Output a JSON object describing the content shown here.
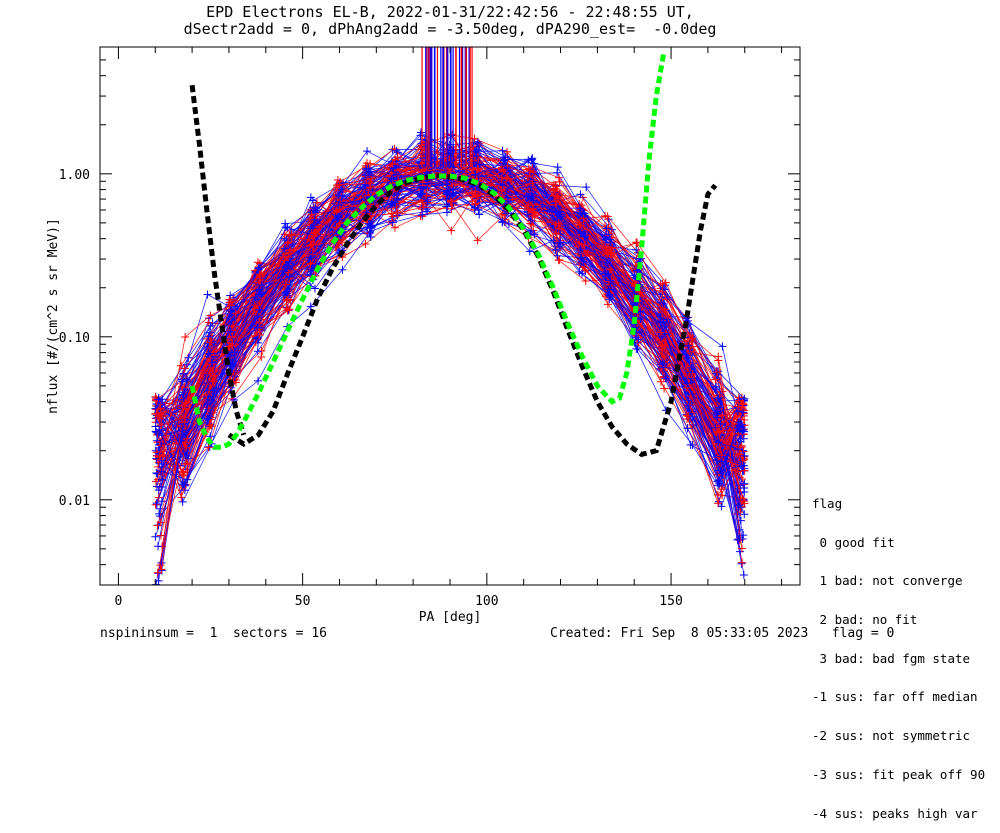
{
  "chart_data": {
    "type": "line",
    "title": "EPD Electrons EL-B, 2022-01-31/22:42:56 - 22:48:55 UT,",
    "subtitle": "dSectr2add = 0, dPhAng2add = -3.50deg, dPA290_est=  -0.0deg",
    "xlabel": "PA [deg]",
    "ylabel": "nflux [#/(cm^2 s sr MeV)]",
    "xlim": [
      -5,
      185
    ],
    "ylim": [
      0.003,
      6
    ],
    "yscale": "log",
    "x_ticks": [
      0,
      50,
      100,
      150
    ],
    "y_ticks": [
      0.01,
      0.1,
      1.0
    ],
    "y_tick_labels": [
      "0.01",
      "0.10",
      "1.00"
    ],
    "grid": false,
    "colors": {
      "red_traces": "#ff0000",
      "blue_traces": "#0000ff",
      "black_fit": "#000000",
      "green_fit": "#00ff00"
    },
    "series": [
      {
        "style": "dashed",
        "color": "#000000",
        "x": [
          20,
          22,
          24,
          26,
          28,
          30,
          32,
          34
        ],
        "y": [
          3.5,
          1.5,
          0.6,
          0.25,
          0.12,
          0.06,
          0.035,
          0.025
        ]
      },
      {
        "style": "dashed",
        "color": "#000000",
        "x": [
          30,
          34,
          38,
          42,
          46,
          50,
          54,
          58,
          62,
          66,
          70,
          74,
          78,
          82,
          86,
          90,
          94,
          98,
          102,
          106,
          110,
          114,
          118,
          122,
          126,
          130,
          134,
          138,
          142,
          146,
          150,
          154,
          158,
          160,
          162
        ],
        "y": [
          0.025,
          0.022,
          0.025,
          0.035,
          0.06,
          0.1,
          0.17,
          0.26,
          0.37,
          0.5,
          0.64,
          0.78,
          0.88,
          0.94,
          0.97,
          0.96,
          0.92,
          0.85,
          0.74,
          0.6,
          0.45,
          0.31,
          0.19,
          0.11,
          0.065,
          0.04,
          0.028,
          0.022,
          0.019,
          0.02,
          0.04,
          0.12,
          0.45,
          0.75,
          0.85
        ]
      },
      {
        "style": "dashed",
        "color": "#00ff00",
        "x": [
          20,
          22,
          24,
          26,
          28,
          30,
          32,
          34,
          38,
          42,
          46,
          50,
          54,
          58,
          62,
          66,
          70,
          74,
          78,
          82,
          86,
          90,
          94,
          98,
          102,
          106,
          110,
          114,
          118,
          122,
          126,
          130,
          134,
          136,
          138,
          140,
          142,
          144,
          146,
          148
        ],
        "y": [
          0.05,
          0.03,
          0.024,
          0.021,
          0.021,
          0.022,
          0.025,
          0.03,
          0.045,
          0.07,
          0.11,
          0.17,
          0.26,
          0.37,
          0.5,
          0.62,
          0.74,
          0.84,
          0.91,
          0.95,
          0.97,
          0.97,
          0.94,
          0.87,
          0.76,
          0.62,
          0.46,
          0.32,
          0.2,
          0.12,
          0.075,
          0.05,
          0.04,
          0.042,
          0.06,
          0.12,
          0.35,
          1.2,
          3.0,
          5.5
        ]
      }
    ],
    "legend": {
      "placement": "lower-right outside",
      "title": "flag",
      "entries": [
        " 0 good fit",
        " 1 bad: not converge",
        " 2 bad: no fit",
        " 3 bad: bad fgm state",
        "-1 sus: far off median",
        "-2 sus: not symmetric",
        "-3 sus: fit peak off 90",
        "-4 sus: peaks high var"
      ]
    }
  },
  "footer": {
    "left": "nspininsum =  1  sectors = 16",
    "right": "Created: Fri Sep  8 05:33:05 2023   flag = 0"
  }
}
